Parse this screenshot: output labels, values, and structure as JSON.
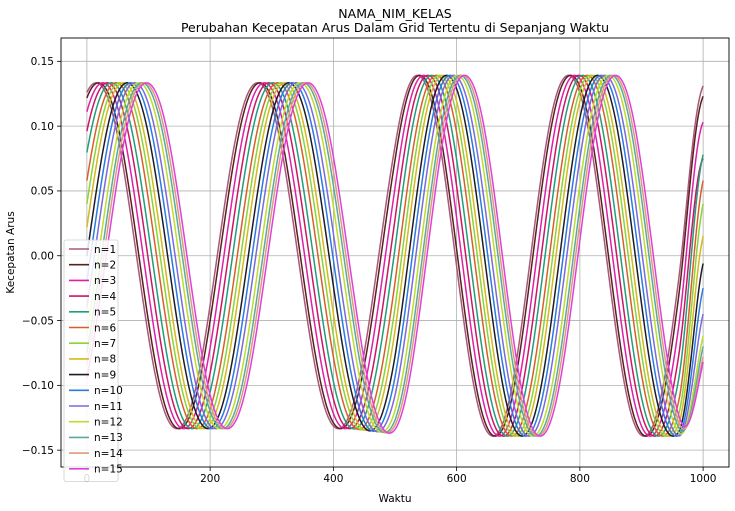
{
  "chart_data": {
    "type": "line",
    "title": "NAMA_NIM_KELAS",
    "subtitle": "Perubahan Kecepatan Arus Dalam Grid Tertentu di Sepanjang Waktu",
    "xlabel": "Waktu",
    "ylabel": "Kecepatan Arus",
    "xlim": [
      -42,
      1042
    ],
    "ylim": [
      -0.163,
      0.168
    ],
    "xticks": [
      0,
      200,
      400,
      600,
      800,
      1000
    ],
    "xtick_labels": [
      "0",
      "200",
      "400",
      "600",
      "800",
      "1000"
    ],
    "yticks": [
      -0.15,
      -0.1,
      -0.05,
      0.0,
      0.05,
      0.1,
      0.15
    ],
    "ytick_labels": [
      "−0.15",
      "−0.10",
      "−0.05",
      "0.00",
      "0.05",
      "0.10",
      "0.15"
    ],
    "grid": true,
    "legend_position": "lower-left",
    "series": [
      {
        "name": "n=1",
        "color": "#a8587a",
        "start_value": 0.13,
        "end_value": 0.131
      },
      {
        "name": "n=2",
        "color": "#5a1f1f",
        "start_value": 0.125,
        "end_value": 0.123
      },
      {
        "name": "n=3",
        "color": "#e01fa8",
        "start_value": 0.113,
        "end_value": 0.103
      },
      {
        "name": "n=4",
        "color": "#cc1566",
        "start_value": 0.097,
        "end_value": 0.075
      },
      {
        "name": "n=5",
        "color": "#1f9e7a",
        "start_value": 0.08,
        "end_value": 0.078
      },
      {
        "name": "n=6",
        "color": "#d95f2a",
        "start_value": 0.058,
        "end_value": 0.058
      },
      {
        "name": "n=7",
        "color": "#88d43a",
        "start_value": 0.04,
        "end_value": 0.04
      },
      {
        "name": "n=8",
        "color": "#d4b81c",
        "start_value": 0.022,
        "end_value": 0.015
      },
      {
        "name": "n=9",
        "color": "#1c1c2a",
        "start_value": 0.0,
        "end_value": -0.006
      },
      {
        "name": "n=10",
        "color": "#2a7ae0",
        "start_value": -0.02,
        "end_value": -0.025
      },
      {
        "name": "n=11",
        "color": "#7a6adb",
        "start_value": -0.04,
        "end_value": -0.045
      },
      {
        "name": "n=12",
        "color": "#bedc2a",
        "start_value": -0.06,
        "end_value": -0.062
      },
      {
        "name": "n=13",
        "color": "#5aa8a0",
        "start_value": -0.075,
        "end_value": -0.07
      },
      {
        "name": "n=14",
        "color": "#e09a7a",
        "start_value": -0.085,
        "end_value": -0.078
      },
      {
        "name": "n=15",
        "color": "#e040d8",
        "start_value": -0.095,
        "end_value": -0.082
      }
    ]
  }
}
